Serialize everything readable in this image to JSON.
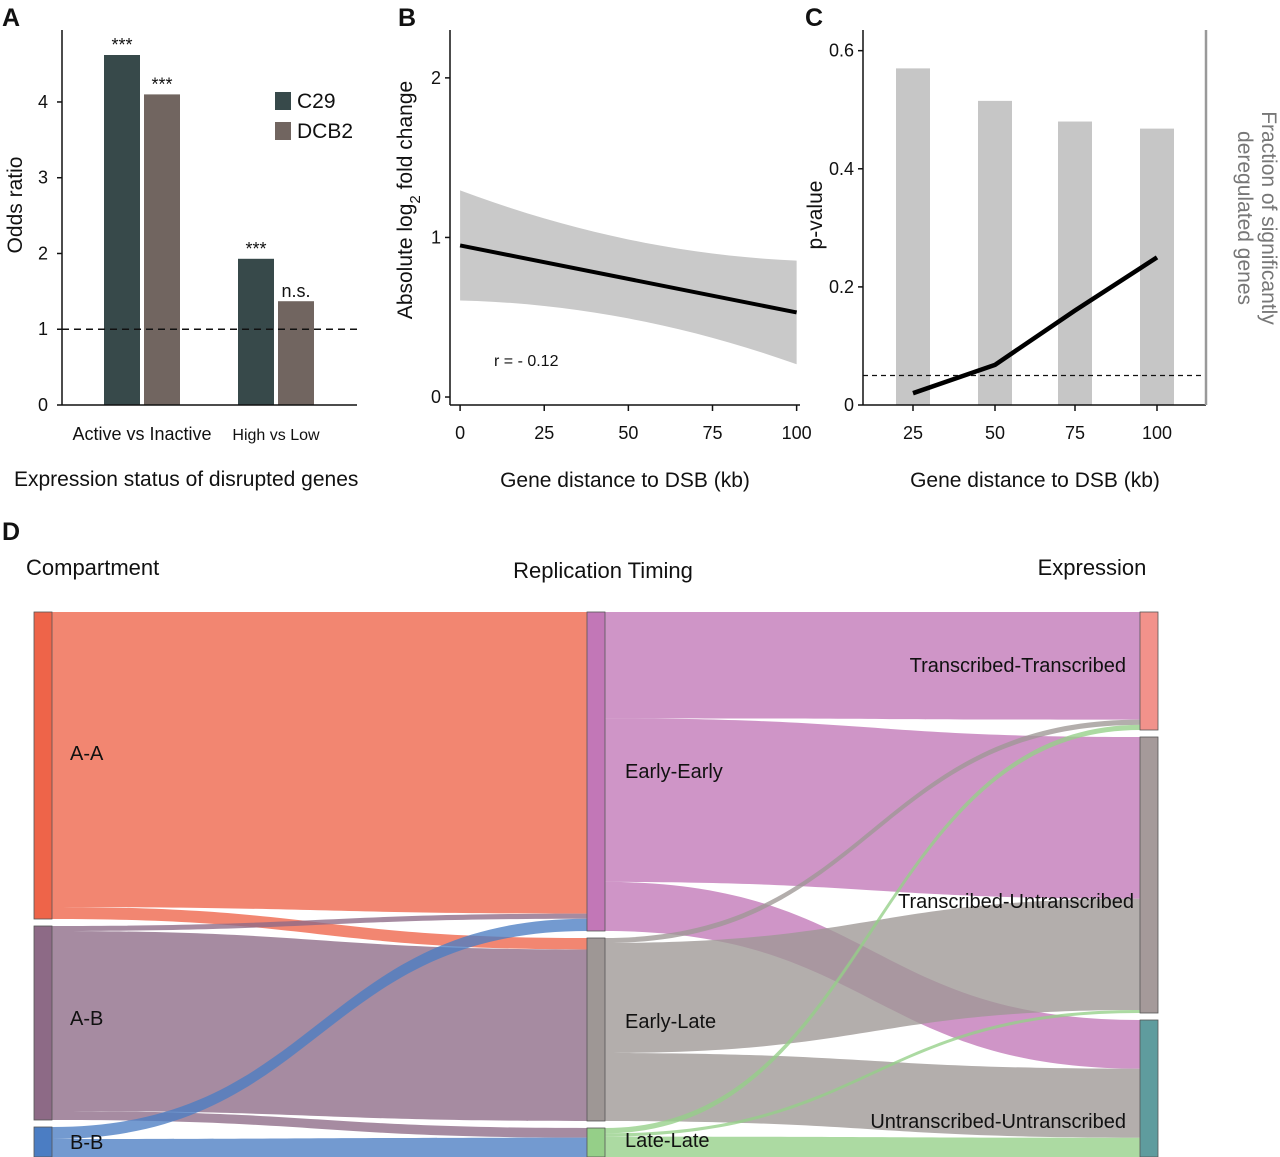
{
  "panel_labels": {
    "a": "A",
    "b": "B",
    "c": "C",
    "d": "D"
  },
  "colors": {
    "c29": "#37494a",
    "dcb2": "#716560",
    "band": "#c9c9c9",
    "pbar": "#c6c6c6",
    "AA": "#ee6449",
    "AB": "#8d6a86",
    "BB": "#4b7dc3",
    "EE": "#c277b7",
    "EL": "#9e9795",
    "LL": "#95cf88",
    "TT": "#f2928b",
    "TU": "#a59a9a",
    "UU": "#5f9c9e"
  },
  "chart_data": [
    {
      "type": "bar",
      "panel": "A",
      "categories": [
        "Active vs Inactive",
        "High vs Low"
      ],
      "series": [
        {
          "name": "C29",
          "values": [
            4.62,
            1.93
          ],
          "labels": [
            "***",
            "***"
          ]
        },
        {
          "name": "DCB2",
          "values": [
            4.1,
            1.37
          ],
          "labels": [
            "***",
            "n.s."
          ]
        }
      ],
      "ylabel": "Odds ratio",
      "xlabel": "Expression status of disrupted genes",
      "ylim": [
        0,
        4.95
      ],
      "yticks": [
        0,
        1,
        2,
        3,
        4
      ],
      "reference_line": 1,
      "legend": "top-right"
    },
    {
      "type": "line",
      "panel": "B",
      "x": [
        0,
        100
      ],
      "y": [
        0.95,
        0.53
      ],
      "ci_lower": [
        0.61,
        0.21
      ],
      "ci_upper": [
        1.3,
        0.86
      ],
      "xlabel": "Gene distance to DSB (kb)",
      "ylabel_main": "Absolute  log",
      "ylabel_sub": "2",
      "ylabel_tail": " fold change",
      "xlim": [
        -3,
        101
      ],
      "ylim": [
        -0.05,
        2.3
      ],
      "xticks": [
        0,
        25,
        50,
        75,
        100
      ],
      "yticks": [
        0,
        1,
        2
      ],
      "annotation": "r = - 0.12"
    },
    {
      "type": "bar",
      "panel": "C",
      "categories": [
        "25",
        "50",
        "75",
        "100"
      ],
      "bars": [
        0.57,
        0.515,
        0.48,
        0.468
      ],
      "line": [
        0.02,
        0.068,
        0.16,
        0.25
      ],
      "threshold": 0.05,
      "xlabel": "Gene distance to DSB (kb)",
      "ylabel": "p-value",
      "ylabel_right_1": "Fraction of significantly",
      "ylabel_right_2": "deregulated genes",
      "ylim": [
        0,
        0.635
      ],
      "yticks": [
        "0",
        "0.2",
        "0.4",
        "0.6"
      ]
    },
    {
      "type": "sankey",
      "panel": "D",
      "columns": [
        "Compartment",
        "Replication Timing",
        "Expression"
      ],
      "nodes": {
        "AA": "A-A",
        "AB": "A-B",
        "BB": "B-B",
        "EE": "Early-Early",
        "EL": "Early-Late",
        "LL": "Late-Late",
        "TT": "Transcribed-Transcribed",
        "TU": "Transcribed-Untranscribed",
        "UU": "Untranscribed-Untranscribed"
      },
      "flows_left": [
        {
          "from": "AA",
          "to": "EE",
          "value": 295
        },
        {
          "from": "AA",
          "to": "EL",
          "value": 12
        },
        {
          "from": "AB",
          "to": "EE",
          "value": 5
        },
        {
          "from": "AB",
          "to": "EL",
          "value": 180
        },
        {
          "from": "AB",
          "to": "LL",
          "value": 9
        },
        {
          "from": "BB",
          "to": "EE",
          "value": 12
        },
        {
          "from": "BB",
          "to": "LL",
          "value": 18
        }
      ],
      "flows_right": [
        {
          "from": "EE",
          "to": "TT",
          "value": 104
        },
        {
          "from": "EE",
          "to": "TU",
          "value": 160
        },
        {
          "from": "EE",
          "to": "UU",
          "value": 48
        },
        {
          "from": "EL",
          "to": "TT",
          "value": 5
        },
        {
          "from": "EL",
          "to": "TU",
          "value": 110
        },
        {
          "from": "EL",
          "to": "UU",
          "value": 68
        },
        {
          "from": "LL",
          "to": "TT",
          "value": 5
        },
        {
          "from": "LL",
          "to": "TU",
          "value": 3
        },
        {
          "from": "LL",
          "to": "UU",
          "value": 19
        }
      ]
    }
  ]
}
